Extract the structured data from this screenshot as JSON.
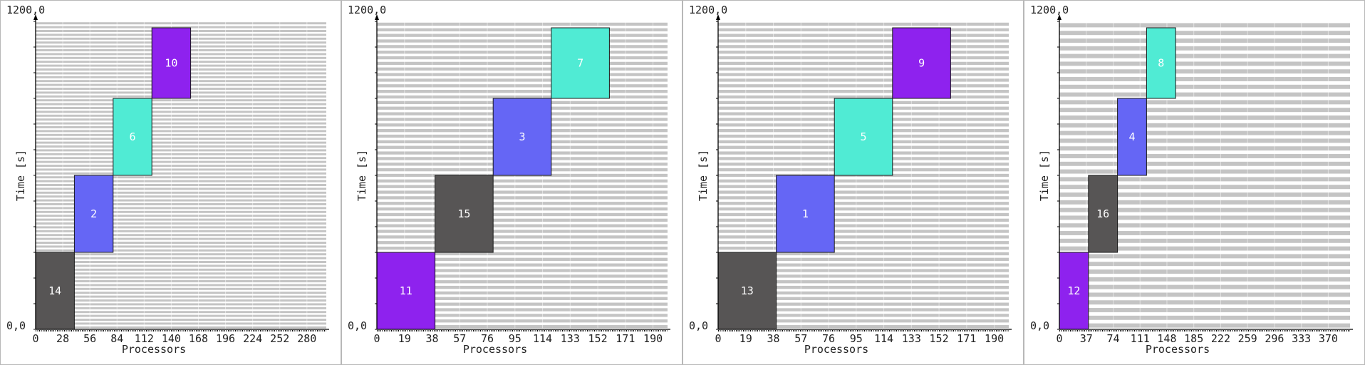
{
  "chart_data": [
    {
      "type": "gantt",
      "xlabel": "Processors",
      "ylabel": "Time [s]",
      "y_top_label": "1200,0",
      "y_origin_label": "0,0",
      "x_ticks": [
        "0",
        "28",
        "56",
        "84",
        "112",
        "140",
        "168",
        "196",
        "224",
        "252",
        "280"
      ],
      "x_range": [
        0,
        300
      ],
      "y_range": [
        0,
        1200
      ],
      "grid_rows": 80,
      "jobs": [
        {
          "label": "14",
          "x0": 0,
          "x1": 40,
          "y0": 0,
          "y1": 300,
          "color": "#575555"
        },
        {
          "label": "2",
          "x0": 40,
          "x1": 80,
          "y0": 300,
          "y1": 600,
          "color": "#6566f5"
        },
        {
          "label": "6",
          "x0": 80,
          "x1": 120,
          "y0": 600,
          "y1": 900,
          "color": "#50ebd4"
        },
        {
          "label": "10",
          "x0": 120,
          "x1": 160,
          "y0": 900,
          "y1": 1175,
          "color": "#8e22ee"
        }
      ]
    },
    {
      "type": "gantt",
      "xlabel": "Processors",
      "ylabel": "Time [s]",
      "y_top_label": "1200,0",
      "y_origin_label": "0,0",
      "x_ticks": [
        "0",
        "19",
        "38",
        "57",
        "76",
        "95",
        "114",
        "133",
        "152",
        "171",
        "190"
      ],
      "x_range": [
        0,
        200
      ],
      "y_range": [
        0,
        1200
      ],
      "grid_rows": 55,
      "jobs": [
        {
          "label": "11",
          "x0": 0,
          "x1": 40,
          "y0": 0,
          "y1": 300,
          "color": "#8e22ee"
        },
        {
          "label": "15",
          "x0": 40,
          "x1": 80,
          "y0": 300,
          "y1": 600,
          "color": "#575555"
        },
        {
          "label": "3",
          "x0": 80,
          "x1": 120,
          "y0": 600,
          "y1": 900,
          "color": "#6566f5"
        },
        {
          "label": "7",
          "x0": 120,
          "x1": 160,
          "y0": 900,
          "y1": 1175,
          "color": "#50ebd4"
        }
      ]
    },
    {
      "type": "gantt",
      "xlabel": "Processors",
      "ylabel": "Time [s]",
      "y_top_label": "1200,0",
      "y_origin_label": "0,0",
      "x_ticks": [
        "0",
        "19",
        "38",
        "57",
        "76",
        "95",
        "114",
        "133",
        "152",
        "171",
        "190"
      ],
      "x_range": [
        0,
        200
      ],
      "y_range": [
        0,
        1200
      ],
      "grid_rows": 55,
      "jobs": [
        {
          "label": "13",
          "x0": 0,
          "x1": 40,
          "y0": 0,
          "y1": 300,
          "color": "#575555"
        },
        {
          "label": "1",
          "x0": 40,
          "x1": 80,
          "y0": 300,
          "y1": 600,
          "color": "#6566f5"
        },
        {
          "label": "5",
          "x0": 80,
          "x1": 120,
          "y0": 600,
          "y1": 900,
          "color": "#50ebd4"
        },
        {
          "label": "9",
          "x0": 120,
          "x1": 160,
          "y0": 900,
          "y1": 1175,
          "color": "#8e22ee"
        }
      ]
    },
    {
      "type": "gantt",
      "xlabel": "Processors",
      "ylabel": "Time [s]",
      "y_top_label": "1200,0",
      "y_origin_label": "0,0",
      "x_ticks": [
        "0",
        "37",
        "74",
        "111",
        "148",
        "185",
        "222",
        "259",
        "296",
        "333",
        "370"
      ],
      "x_range": [
        0,
        400
      ],
      "y_range": [
        0,
        1200
      ],
      "grid_rows": 40,
      "jobs": [
        {
          "label": "12",
          "x0": 0,
          "x1": 40,
          "y0": 0,
          "y1": 300,
          "color": "#8e22ee"
        },
        {
          "label": "16",
          "x0": 40,
          "x1": 80,
          "y0": 300,
          "y1": 600,
          "color": "#575555"
        },
        {
          "label": "4",
          "x0": 80,
          "x1": 120,
          "y0": 600,
          "y1": 900,
          "color": "#6566f5"
        },
        {
          "label": "8",
          "x0": 120,
          "x1": 160,
          "y0": 900,
          "y1": 1175,
          "color": "#50ebd4"
        }
      ]
    }
  ]
}
